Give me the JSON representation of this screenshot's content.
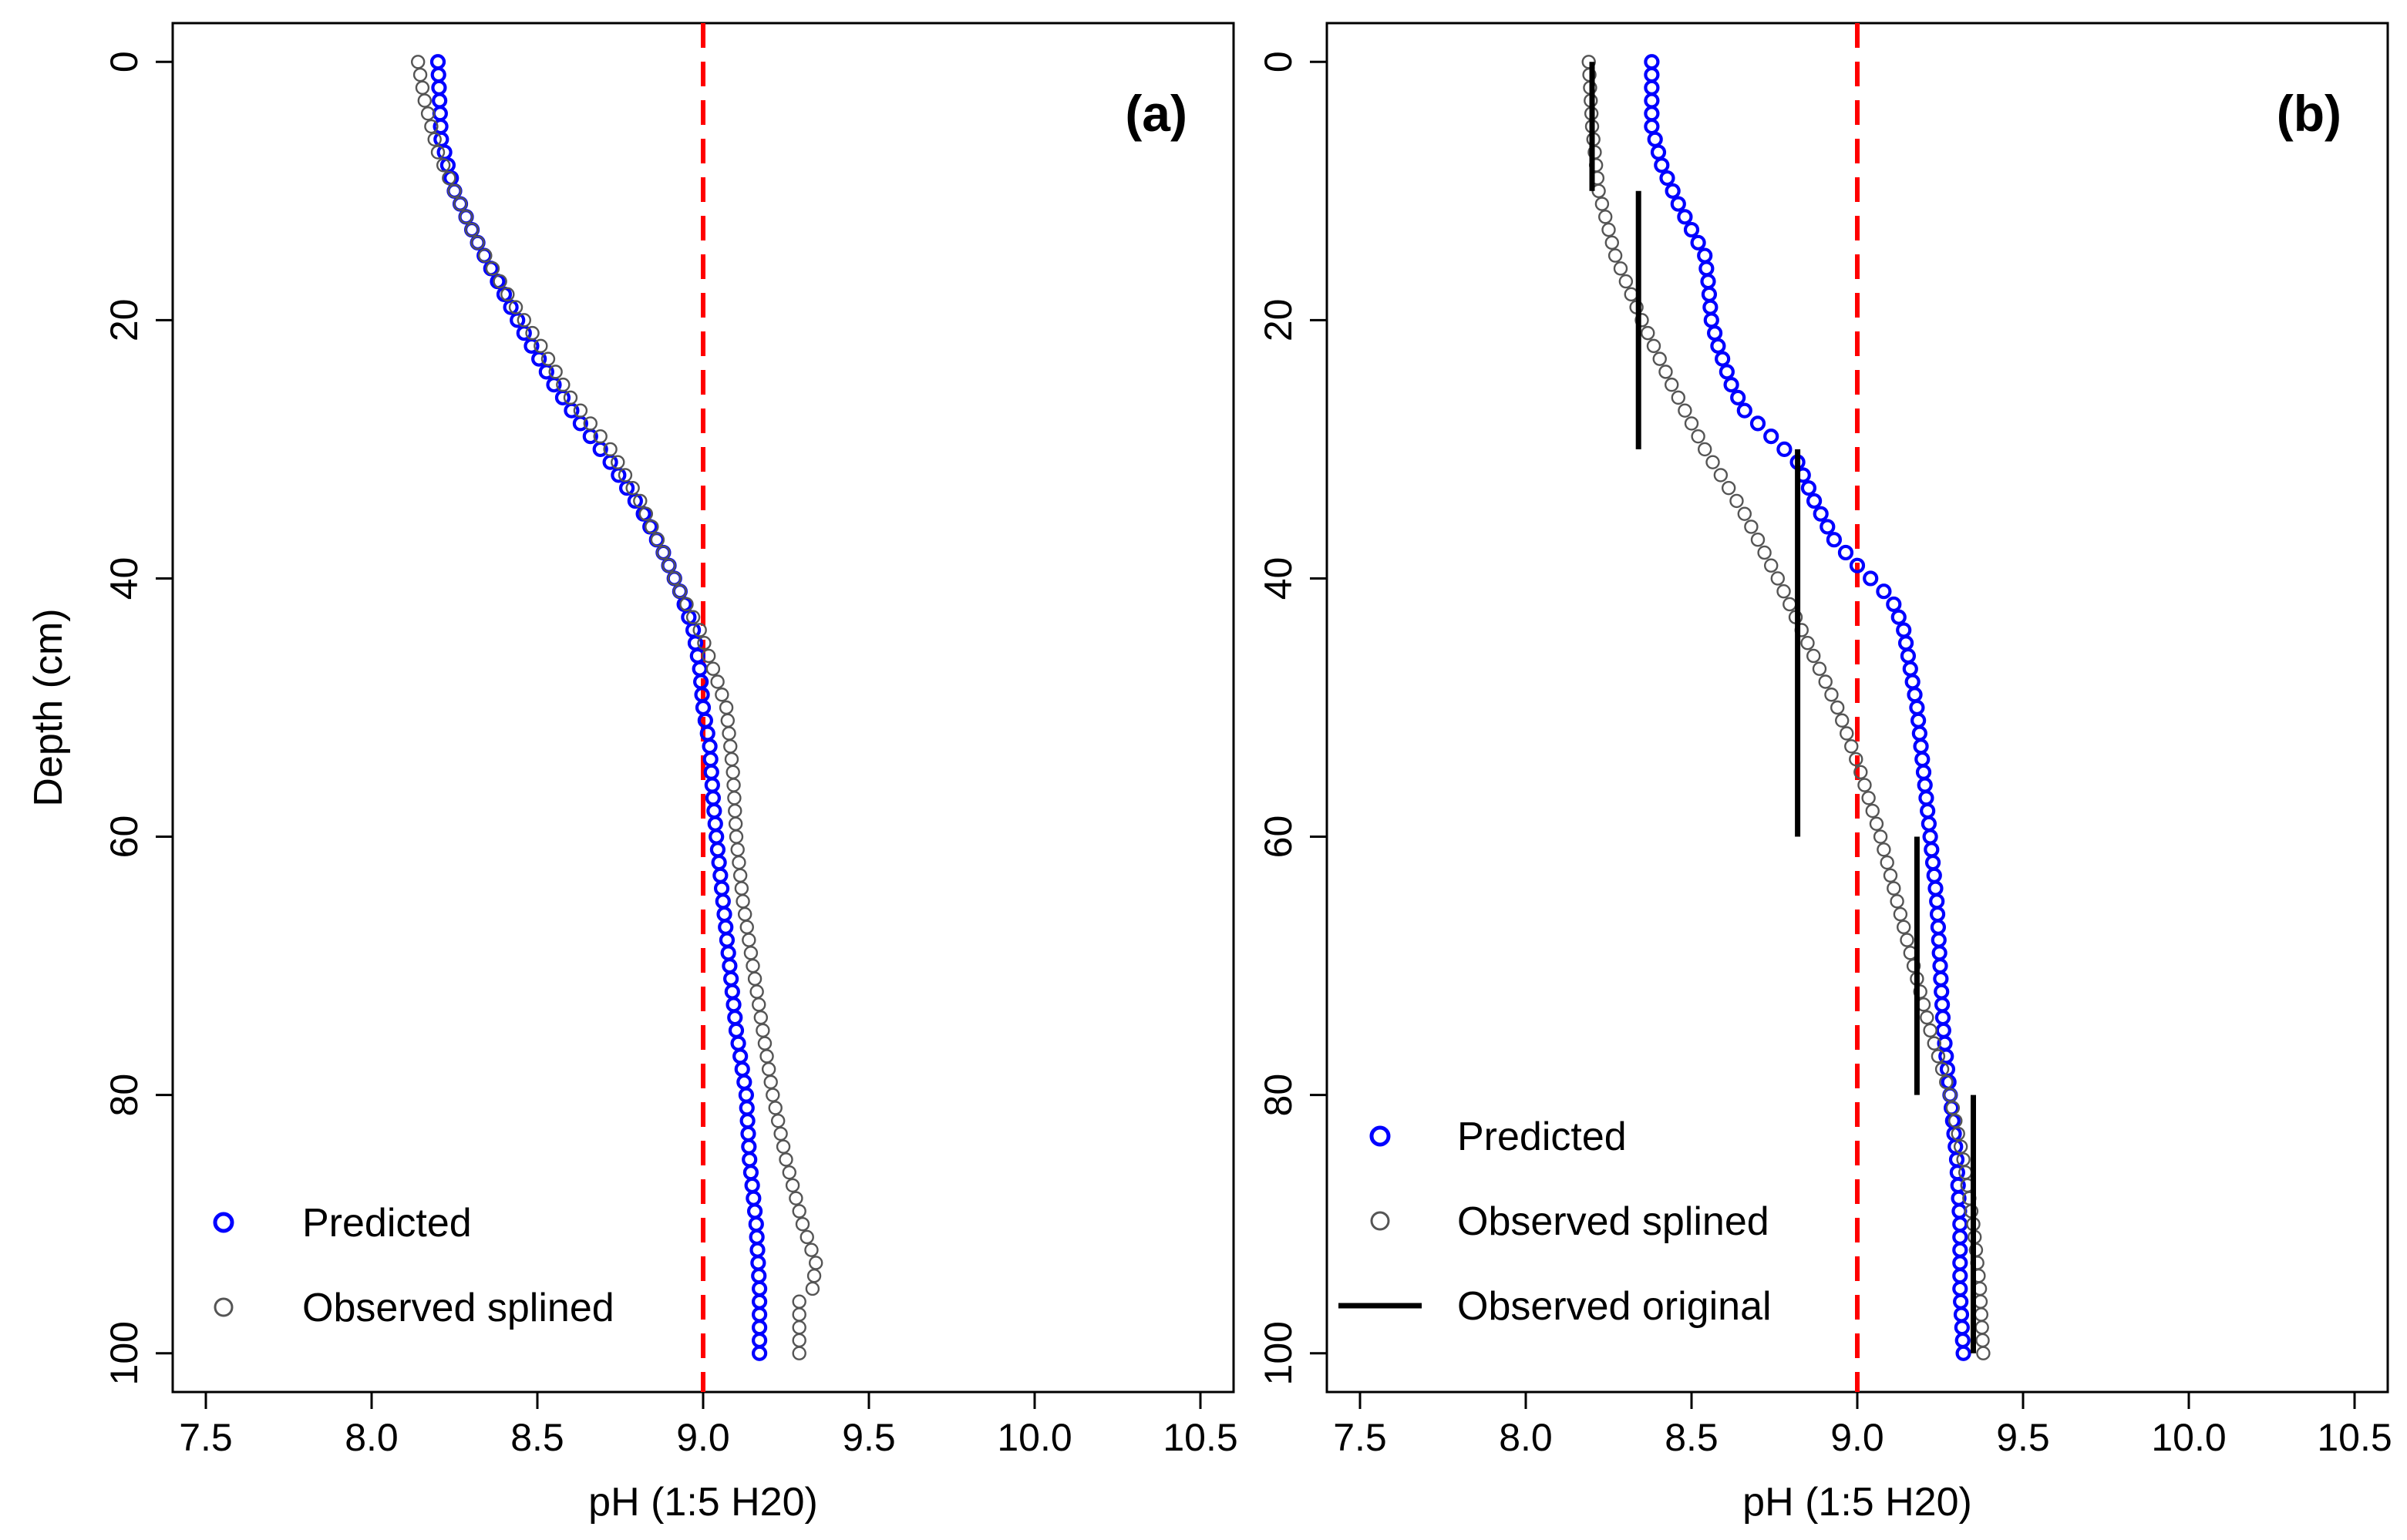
{
  "figure": {
    "ylabel": "Depth (cm)"
  },
  "colors": {
    "predicted": "#0000ff",
    "observed_splined": "#555555",
    "observed_original": "#000000",
    "reference_line": "#ff0000"
  },
  "chart_data": [
    {
      "type": "scatter",
      "panel": "(a)",
      "xlabel": "pH (1:5 H20)",
      "ylabel": "Depth (cm)",
      "xlim": [
        7.4,
        10.6
      ],
      "ylim": [
        103,
        -3
      ],
      "y_reversed": true,
      "xticks": [
        "7.5",
        "8.0",
        "8.5",
        "9.0",
        "9.5",
        "10.0",
        "10.5"
      ],
      "yticks": [
        "0",
        "20",
        "40",
        "60",
        "80",
        "100"
      ],
      "reference_x": 9.0,
      "legend": {
        "position": "bottom-left",
        "entries": [
          "Predicted",
          "Observed splined"
        ]
      },
      "series": [
        {
          "name": "Predicted",
          "marker": "circle",
          "color": "#0000ff",
          "depth_start": 0,
          "depth_step": 1,
          "ph_knots": [
            [
              0,
              8.2
            ],
            [
              6,
              8.21
            ],
            [
              10,
              8.25
            ],
            [
              14,
              8.32
            ],
            [
              18,
              8.4
            ],
            [
              21,
              8.46
            ],
            [
              25,
              8.55
            ],
            [
              28,
              8.63
            ],
            [
              31,
              8.72
            ],
            [
              35,
              8.82
            ],
            [
              38,
              8.88
            ],
            [
              41,
              8.93
            ],
            [
              44,
              8.97
            ],
            [
              47,
              8.99
            ],
            [
              50,
              9.0
            ],
            [
              53,
              9.02
            ],
            [
              57,
              9.03
            ],
            [
              60,
              9.04
            ],
            [
              65,
              9.06
            ],
            [
              70,
              9.08
            ],
            [
              75,
              9.1
            ],
            [
              80,
              9.13
            ],
            [
              85,
              9.14
            ],
            [
              90,
              9.16
            ],
            [
              95,
              9.17
            ],
            [
              100,
              9.17
            ]
          ]
        },
        {
          "name": "Observed splined",
          "marker": "circle",
          "color": "#555555",
          "depth_start": 0,
          "depth_step": 1,
          "ph_knots": [
            [
              0,
              8.14
            ],
            [
              3,
              8.16
            ],
            [
              7,
              8.2
            ],
            [
              10,
              8.25
            ],
            [
              14,
              8.32
            ],
            [
              18,
              8.41
            ],
            [
              22,
              8.51
            ],
            [
              26,
              8.6
            ],
            [
              30,
              8.72
            ],
            [
              34,
              8.81
            ],
            [
              38,
              8.88
            ],
            [
              41,
              8.93
            ],
            [
              44,
              8.99
            ],
            [
              47,
              9.03
            ],
            [
              50,
              9.07
            ],
            [
              55,
              9.09
            ],
            [
              60,
              9.1
            ],
            [
              65,
              9.12
            ],
            [
              70,
              9.15
            ],
            [
              75,
              9.18
            ],
            [
              80,
              9.21
            ],
            [
              85,
              9.25
            ],
            [
              90,
              9.3
            ],
            [
              93,
              9.34
            ],
            [
              95,
              9.33
            ],
            [
              96,
              9.29
            ],
            [
              100,
              9.29
            ]
          ]
        }
      ]
    },
    {
      "type": "scatter",
      "panel": "(b)",
      "xlabel": "pH (1:5 H20)",
      "ylabel": "",
      "xlim": [
        7.4,
        10.6
      ],
      "ylim": [
        103,
        -3
      ],
      "y_reversed": true,
      "xticks": [
        "7.5",
        "8.0",
        "8.5",
        "9.0",
        "9.5",
        "10.0",
        "10.5"
      ],
      "yticks": [
        "0",
        "20",
        "40",
        "60",
        "80",
        "100"
      ],
      "reference_x": 9.0,
      "legend": {
        "position": "bottom-left",
        "entries": [
          "Predicted",
          "Observed splined",
          "Observed original"
        ]
      },
      "series": [
        {
          "name": "Predicted",
          "marker": "circle",
          "color": "#0000ff",
          "depth_start": 0,
          "depth_step": 1,
          "ph_knots": [
            [
              0,
              8.38
            ],
            [
              5,
              8.38
            ],
            [
              8,
              8.41
            ],
            [
              11,
              8.46
            ],
            [
              13,
              8.5
            ],
            [
              15,
              8.54
            ],
            [
              17,
              8.55
            ],
            [
              20,
              8.56
            ],
            [
              22,
              8.58
            ],
            [
              25,
              8.62
            ],
            [
              27,
              8.66
            ],
            [
              29,
              8.74
            ],
            [
              31,
              8.82
            ],
            [
              34,
              8.87
            ],
            [
              37,
              8.93
            ],
            [
              39,
              9.0
            ],
            [
              41,
              9.08
            ],
            [
              42,
              9.11
            ],
            [
              44,
              9.14
            ],
            [
              47,
              9.16
            ],
            [
              50,
              9.18
            ],
            [
              55,
              9.2
            ],
            [
              60,
              9.22
            ],
            [
              65,
              9.24
            ],
            [
              70,
              9.25
            ],
            [
              75,
              9.26
            ],
            [
              80,
              9.28
            ],
            [
              85,
              9.3
            ],
            [
              90,
              9.31
            ],
            [
              95,
              9.31
            ],
            [
              100,
              9.32
            ]
          ]
        },
        {
          "name": "Observed splined",
          "marker": "circle",
          "color": "#555555",
          "depth_start": 0,
          "depth_step": 1,
          "ph_knots": [
            [
              0,
              8.19
            ],
            [
              5,
              8.2
            ],
            [
              10,
              8.22
            ],
            [
              15,
              8.27
            ],
            [
              20,
              8.35
            ],
            [
              25,
              8.44
            ],
            [
              30,
              8.54
            ],
            [
              35,
              8.66
            ],
            [
              40,
              8.76
            ],
            [
              45,
              8.85
            ],
            [
              50,
              8.94
            ],
            [
              55,
              9.01
            ],
            [
              60,
              9.07
            ],
            [
              65,
              9.12
            ],
            [
              70,
              9.17
            ],
            [
              75,
              9.22
            ],
            [
              80,
              9.28
            ],
            [
              85,
              9.32
            ],
            [
              90,
              9.35
            ],
            [
              95,
              9.37
            ],
            [
              100,
              9.38
            ]
          ]
        },
        {
          "name": "Observed original",
          "marker": "line",
          "color": "#000000",
          "segments": [
            {
              "ph": 8.2,
              "from": 0,
              "to": 10
            },
            {
              "ph": 8.34,
              "from": 10,
              "to": 30
            },
            {
              "ph": 8.82,
              "from": 30,
              "to": 60
            },
            {
              "ph": 9.18,
              "from": 60,
              "to": 80
            },
            {
              "ph": 9.35,
              "from": 80,
              "to": 100
            }
          ]
        }
      ]
    }
  ]
}
